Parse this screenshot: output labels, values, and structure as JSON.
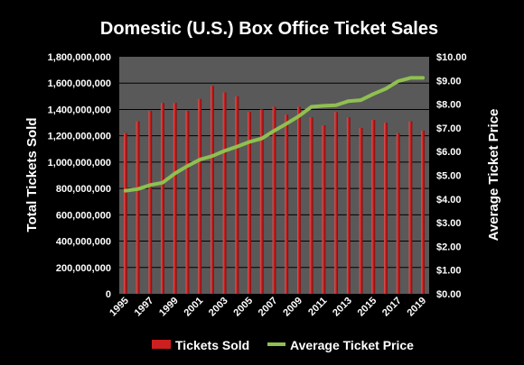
{
  "chart_data": {
    "type": "bar",
    "title": "Domestic (U.S.) Box Office Ticket Sales",
    "ylabel": "Total Tickets Sold",
    "y2label": "Average Ticket Price",
    "categories": [
      "1995",
      "1996",
      "1997",
      "1998",
      "1999",
      "2000",
      "2001",
      "2002",
      "2003",
      "2004",
      "2005",
      "2006",
      "2007",
      "2008",
      "2009",
      "2010",
      "2011",
      "2012",
      "2013",
      "2014",
      "2015",
      "2016",
      "2017",
      "2018",
      "2019"
    ],
    "xtick_labels": [
      "1995",
      "1997",
      "1999",
      "2001",
      "2003",
      "2005",
      "2007",
      "2009",
      "2011",
      "2013",
      "2015",
      "2017",
      "2019"
    ],
    "ylim": [
      0,
      1800000000
    ],
    "y_ticks": [
      "0",
      "200,000,000",
      "400,000,000",
      "600,000,000",
      "800,000,000",
      "1,000,000,000",
      "1,200,000,000",
      "1,400,000,000",
      "1,600,000,000",
      "1,800,000,000"
    ],
    "y2lim": [
      0,
      10
    ],
    "y2_ticks": [
      "$0.00",
      "$1.00",
      "$2.00",
      "$3.00",
      "$4.00",
      "$5.00",
      "$6.00",
      "$7.00",
      "$8.00",
      "$9.00",
      "$10.00"
    ],
    "grid": true,
    "legend_position": "bottom",
    "series": [
      {
        "name": "Tickets Sold",
        "type": "bar",
        "axis": "left",
        "color": "#cc1f1f",
        "values": [
          1220000000,
          1310000000,
          1390000000,
          1450000000,
          1450000000,
          1390000000,
          1480000000,
          1580000000,
          1530000000,
          1500000000,
          1380000000,
          1400000000,
          1420000000,
          1360000000,
          1420000000,
          1340000000,
          1280000000,
          1380000000,
          1340000000,
          1260000000,
          1320000000,
          1300000000,
          1220000000,
          1310000000,
          1240000000
        ]
      },
      {
        "name": "Average Ticket Price",
        "type": "line",
        "axis": "right",
        "color": "#8fc050",
        "values": [
          4.35,
          4.42,
          4.59,
          4.69,
          5.08,
          5.39,
          5.66,
          5.81,
          6.03,
          6.21,
          6.41,
          6.55,
          6.88,
          7.18,
          7.5,
          7.89,
          7.93,
          7.96,
          8.13,
          8.17,
          8.43,
          8.65,
          8.97,
          9.11,
          9.11
        ]
      }
    ]
  }
}
